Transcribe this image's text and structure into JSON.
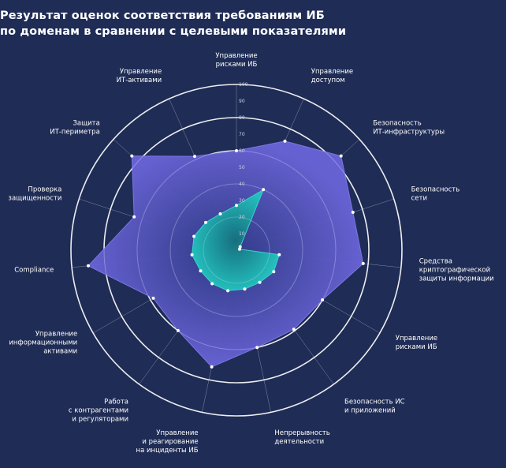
{
  "title_line1": "Результат оценок соответствия требованиям ИБ",
  "title_line2": "по доменам в сравнении с целевыми показателями",
  "colors": {
    "background": "#1f2c55",
    "grid": "#ffffff",
    "target_fill": "#5a57c9",
    "current_fill": "#1fb5b3",
    "marker": "#ffffff"
  },
  "chart_data": {
    "type": "radar",
    "title": "Результат оценок соответствия требованиям ИБ по доменам в сравнении с целевыми показателями",
    "range": [
      0,
      100
    ],
    "ticks": [
      10,
      20,
      30,
      40,
      50,
      60,
      70,
      80,
      90,
      100
    ],
    "tick_labels": [
      "10",
      "20",
      "30",
      "40",
      "50",
      "60",
      "70",
      "80",
      "90",
      "100"
    ],
    "categories": [
      [
        "Управление",
        "рисками ИБ"
      ],
      [
        "Управление",
        "доступом"
      ],
      [
        "Безопасность",
        "ИТ-инфраструктуры"
      ],
      [
        "Безопасность",
        "сети"
      ],
      [
        "Средства",
        "криптографической",
        "защиты информации"
      ],
      [
        "Управление",
        "рисками ИБ"
      ],
      [
        "Безопасность ИС",
        "и приложений"
      ],
      [
        "Непрерывность",
        "деятельности"
      ],
      [
        "Управление",
        "и реагирование",
        "на инциденты ИБ"
      ],
      [
        "Работа",
        "с контрагентами",
        "и регуляторами"
      ],
      [
        "Управление",
        "информационными",
        "активами"
      ],
      [
        "Compliance"
      ],
      [
        "Проверка",
        "защищенности"
      ],
      [
        "Защита",
        "ИТ-периметра"
      ],
      [
        "Управление",
        "ИТ-активами"
      ]
    ],
    "series": [
      {
        "values": [
          60,
          72,
          85,
          74,
          77,
          60,
          59,
          60,
          72,
          60,
          58,
          90,
          65,
          85,
          62
        ]
      },
      {
        "values": [
          27,
          40,
          3,
          2,
          26,
          26,
          24,
          24,
          25,
          25,
          25,
          27,
          27,
          25,
          24
        ]
      }
    ]
  }
}
